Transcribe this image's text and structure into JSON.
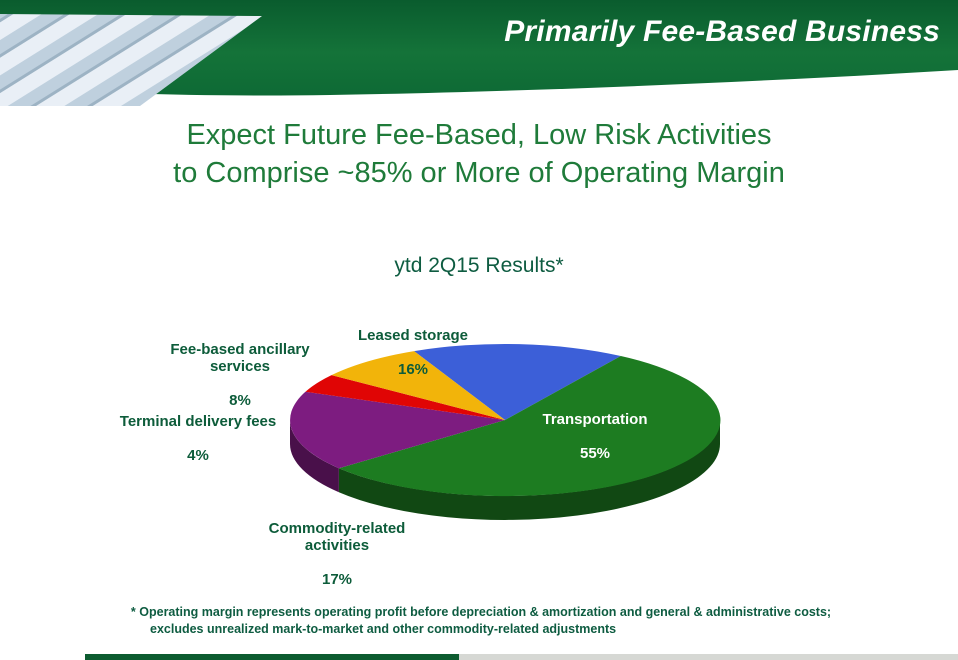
{
  "header": {
    "title": "Primarily Fee-Based Business"
  },
  "main_title": {
    "line1": "Expect Future Fee-Based, Low Risk Activities",
    "line2": "to Comprise ~85% or More of Operating Margin"
  },
  "chart_data": {
    "type": "pie",
    "style": "3d",
    "title": "ytd 2Q15 Results*",
    "start_angle": -25,
    "legend_position": "none",
    "labels_on_chart": true,
    "slices": [
      {
        "label": "Leased storage",
        "pct": "16%",
        "value": 16,
        "color": "#3c5fd8"
      },
      {
        "label": "Transportation",
        "pct": "55%",
        "value": 55,
        "color": "#1d7c21"
      },
      {
        "label": "Commodity-related\nactivities",
        "pct": "17%",
        "value": 17,
        "color": "#7d1c80"
      },
      {
        "label": "Terminal delivery fees",
        "pct": "4%",
        "value": 4,
        "color": "#e00505"
      },
      {
        "label": "Fee-based ancillary\nservices",
        "pct": "8%",
        "value": 8,
        "color": "#f2b40a"
      }
    ]
  },
  "footnote": {
    "line1": "* Operating margin represents operating profit before depreciation & amortization and general & administrative costs;",
    "line2": "excludes unrealized mark-to-market and other commodity-related adjustments"
  },
  "colors": {
    "banner_green_top": "#0a5c2e",
    "banner_green": "#147339",
    "banner_green_bottom": "#0e6a35",
    "title_green": "#1f7b3a",
    "dark_green_text": "#0e5c41",
    "label_green": "#0d5c3a",
    "white": "#ffffff",
    "footer_bar_green": "#0d5c30",
    "footer_bar_gray": "#d6d8d4",
    "pipes_light": "#e9eff6",
    "pipes_mid": "#bfd0de",
    "pipes_dark": "#9db3c4"
  }
}
